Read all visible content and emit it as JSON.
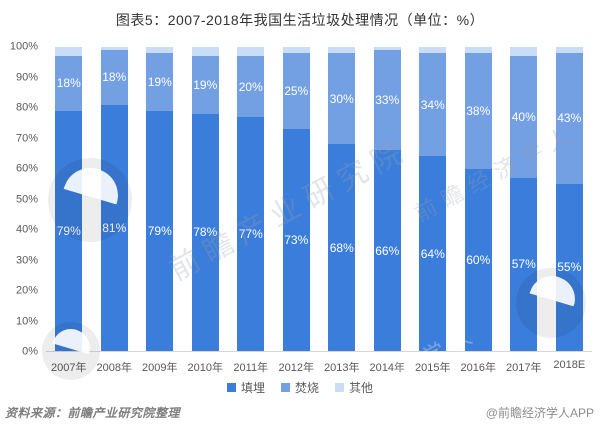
{
  "chart_data": {
    "type": "bar",
    "stacked": true,
    "title": "图表5：2007-2018年我国生活垃圾处理情况（单位：%）",
    "categories": [
      "2007年",
      "2008年",
      "2009年",
      "2010年",
      "2011年",
      "2012年",
      "2013年",
      "2014年",
      "2015年",
      "2016年",
      "2017年",
      "2018E"
    ],
    "series": [
      {
        "name": "填埋",
        "color": "#3b7ddb",
        "show_labels": true,
        "values": [
          79,
          81,
          79,
          78,
          77,
          73,
          68,
          66,
          64,
          60,
          57,
          55
        ]
      },
      {
        "name": "焚烧",
        "color": "#739fe3",
        "show_labels": true,
        "values": [
          18,
          18,
          19,
          19,
          20,
          25,
          30,
          33,
          34,
          38,
          40,
          43
        ]
      },
      {
        "name": "其他",
        "color": "#c9ddf6",
        "show_labels": false,
        "values": [
          3,
          1,
          2,
          3,
          3,
          2,
          2,
          1,
          2,
          2,
          3,
          2
        ]
      }
    ],
    "ylim": [
      0,
      100
    ],
    "y_ticks": [
      "0%",
      "10%",
      "20%",
      "30%",
      "40%",
      "50%",
      "60%",
      "70%",
      "80%",
      "90%",
      "100%"
    ],
    "value_suffix": "%",
    "grid": false,
    "legend_position": "bottom"
  },
  "footer": {
    "source": "资料来源：前瞻产业研究院整理",
    "attribution": "@前瞻经济学人APP"
  },
  "watermarks": {
    "center_text": "前瞻产业研究院",
    "side_text": "前瞻经济学人"
  }
}
